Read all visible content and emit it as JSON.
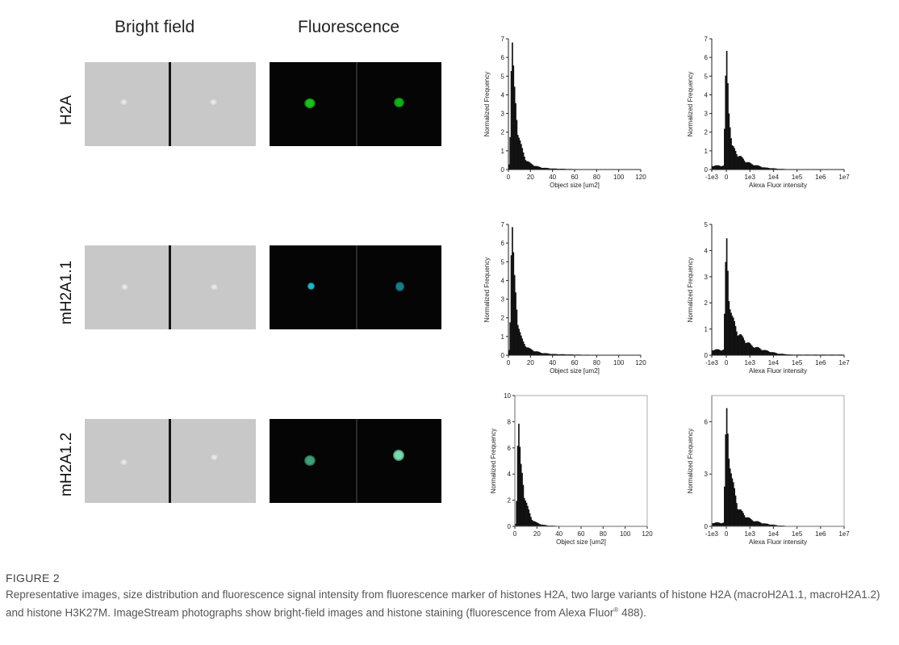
{
  "headers": {
    "bright_field": "Bright field",
    "fluorescence": "Fluorescence"
  },
  "rows": [
    {
      "label": "H2A",
      "fluor_color": "#19c21a",
      "fluor_color2": "#14b01a"
    },
    {
      "label": "mH2A1.1",
      "fluor_color": "#22b6c9",
      "fluor_color2": "#1a7d8f"
    },
    {
      "label": "mH2A1.2",
      "fluor_color": "#3fa07a",
      "fluor_color2": "#79d9b0"
    }
  ],
  "caption": {
    "head": "FIGURE 2",
    "text_before": "Representative images, size distribution and fluorescence signal intensity from fluorescence marker of histones H2A, two large variants of histone H2A (macroH2A1.1, macroH2A1.2) and histone H3K27M. ImageStream photographs show bright-field images and histone staining (fluorescence from Alexa Fluor",
    "sup": "®",
    "text_after": " 488)."
  },
  "chart_data": [
    {
      "type": "bar",
      "row": "H2A",
      "xlabel": "Object size [um2]",
      "ylabel": "Normalized Frequency",
      "xlim": [
        0,
        120
      ],
      "ylim": [
        0,
        7
      ],
      "xticks": [
        "0",
        "20",
        "40",
        "60",
        "80",
        "100",
        "120"
      ],
      "yticks": [
        "0",
        "1",
        "2",
        "3",
        "4",
        "5",
        "6",
        "7"
      ],
      "x": [
        1,
        3,
        5,
        7,
        9,
        11,
        13,
        15,
        17,
        20,
        25,
        30,
        40,
        60,
        90,
        115
      ],
      "values": [
        0.3,
        6.8,
        4.2,
        3.0,
        1.9,
        1.3,
        0.9,
        0.6,
        0.45,
        0.3,
        0.18,
        0.1,
        0.05,
        0.02,
        0.01,
        0.005
      ]
    },
    {
      "type": "bar",
      "row": "H2A",
      "xlabel": "Alexa Fluor intensity",
      "ylabel": "Normalized Frequency",
      "xlim": [
        0,
        1
      ],
      "ylim": [
        0,
        7
      ],
      "xticks": [
        "-1e3",
        "0",
        "1e3",
        "1e4",
        "1e5",
        "1e6",
        "1e7"
      ],
      "yticks": [
        "0",
        "1",
        "2",
        "3",
        "4",
        "5",
        "6",
        "7"
      ],
      "x": [
        0.09,
        0.11,
        0.13,
        0.15,
        0.2,
        0.25,
        0.3,
        0.4,
        0.5,
        0.6
      ],
      "values": [
        0.2,
        6.1,
        3.2,
        1.2,
        0.75,
        0.45,
        0.28,
        0.1,
        0.04,
        0.01
      ]
    },
    {
      "type": "bar",
      "row": "mH2A1.1",
      "xlabel": "Object size [um2]",
      "ylabel": "Normalized Frequency",
      "xlim": [
        0,
        120
      ],
      "ylim": [
        0,
        7
      ],
      "xticks": [
        "0",
        "20",
        "40",
        "60",
        "80",
        "100",
        "120"
      ],
      "yticks": [
        "0",
        "1",
        "2",
        "3",
        "4",
        "5",
        "6",
        "7"
      ],
      "x": [
        1,
        3,
        5,
        7,
        9,
        11,
        13,
        15,
        17,
        20,
        25,
        30,
        40,
        60,
        90,
        115
      ],
      "values": [
        0.3,
        6.9,
        4.1,
        2.8,
        1.6,
        1.0,
        0.7,
        0.55,
        0.42,
        0.3,
        0.2,
        0.12,
        0.06,
        0.03,
        0.01,
        0.005
      ]
    },
    {
      "type": "bar",
      "row": "mH2A1.1",
      "xlabel": "Alexa Fluor intensity",
      "ylabel": "Normalized Frequency",
      "xlim": [
        0,
        1
      ],
      "ylim": [
        0,
        5
      ],
      "xticks": [
        "-1e3",
        "0",
        "1e3",
        "1e4",
        "1e5",
        "1e6",
        "1e7"
      ],
      "yticks": [
        "0",
        "1",
        "2",
        "3",
        "4",
        "5"
      ],
      "x": [
        0.09,
        0.11,
        0.13,
        0.15,
        0.2,
        0.25,
        0.3,
        0.4,
        0.5,
        0.6
      ],
      "values": [
        0.2,
        4.3,
        2.2,
        1.4,
        0.8,
        0.55,
        0.35,
        0.18,
        0.06,
        0.02
      ]
    },
    {
      "type": "bar",
      "row": "mH2A1.2",
      "xlabel": "Object size [um2]",
      "ylabel": "Normalized Frequency",
      "xlim": [
        0,
        120
      ],
      "ylim": [
        0,
        10
      ],
      "xticks": [
        "0",
        "20",
        "40",
        "60",
        "80",
        "100",
        "120"
      ],
      "yticks": [
        "0",
        "2",
        "4",
        "6",
        "8",
        "10"
      ],
      "x": [
        1,
        3,
        5,
        7,
        9,
        11,
        13,
        15,
        17,
        20,
        25,
        30,
        40,
        60,
        90,
        115
      ],
      "values": [
        0.2,
        8.0,
        4.4,
        3.6,
        2.2,
        1.5,
        1.0,
        0.6,
        0.4,
        0.25,
        0.12,
        0.06,
        0.03,
        0.01,
        0.005,
        0.003
      ]
    },
    {
      "type": "bar",
      "row": "mH2A1.2",
      "xlabel": "Alexa Fluor intensity",
      "ylabel": "Normalized Frequency",
      "xlim": [
        0,
        1
      ],
      "ylim": [
        0,
        7.5
      ],
      "xticks": [
        "-1e3",
        "0",
        "1e3",
        "1e4",
        "1e5",
        "1e6",
        "1e7"
      ],
      "yticks": [
        "0",
        "3",
        "6"
      ],
      "x": [
        0.09,
        0.11,
        0.13,
        0.15,
        0.2,
        0.25,
        0.3,
        0.4,
        0.5,
        0.6
      ],
      "values": [
        0.2,
        6.4,
        4.2,
        2.6,
        1.0,
        0.6,
        0.35,
        0.15,
        0.05,
        0.01
      ]
    }
  ]
}
